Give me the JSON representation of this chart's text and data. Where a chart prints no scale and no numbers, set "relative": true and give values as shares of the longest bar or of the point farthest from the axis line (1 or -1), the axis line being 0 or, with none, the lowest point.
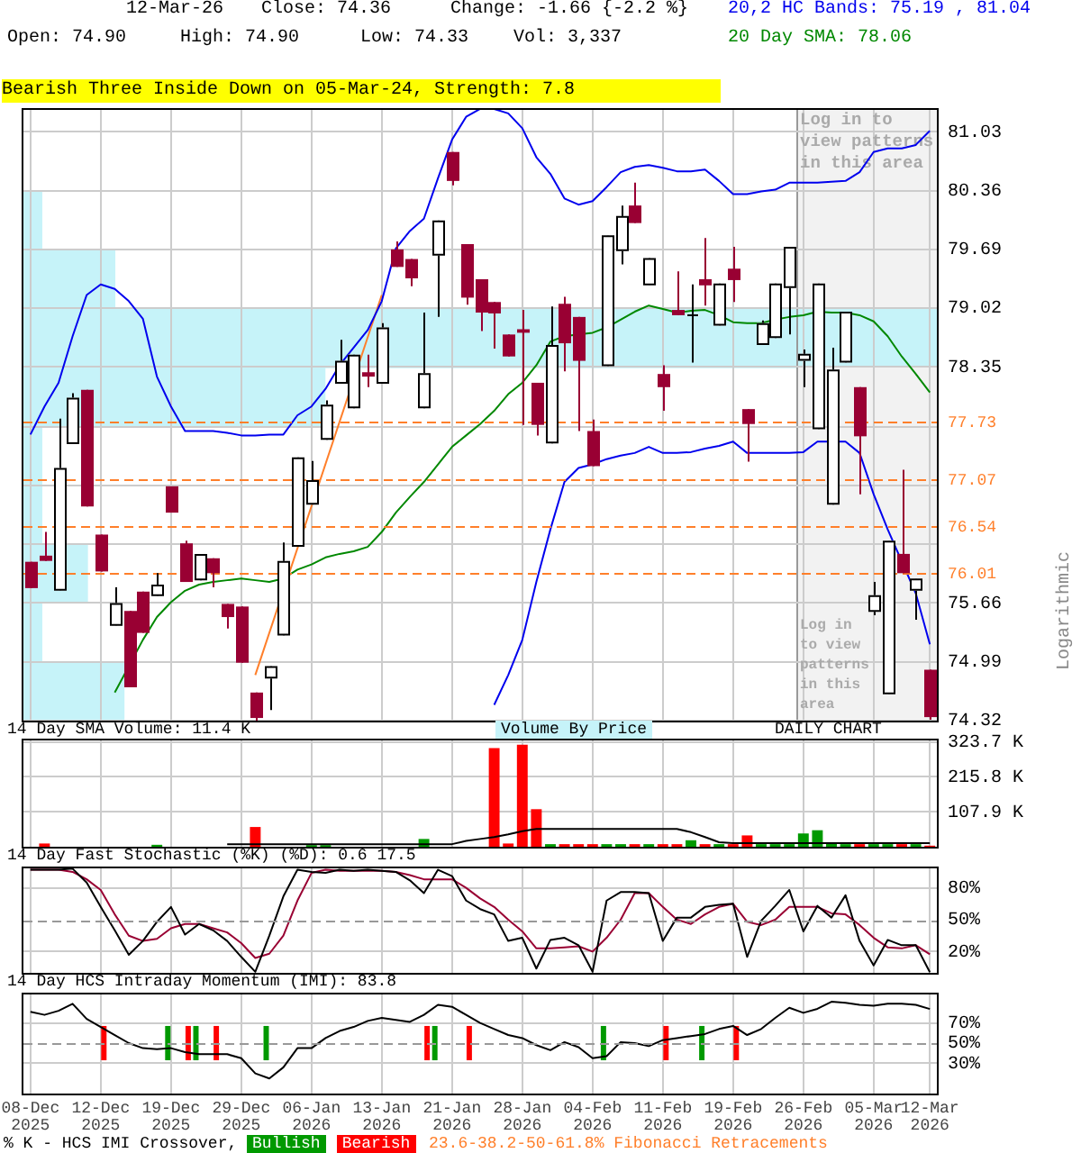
{
  "chart_data": [
    {
      "type": "candlestick",
      "categories": [
        "08-Dec 2025",
        null,
        null,
        null,
        null,
        "12-Dec 2025",
        null,
        null,
        null,
        null,
        "19-Dec 2025",
        null,
        null,
        null,
        null,
        "29-Dec 2025",
        null,
        null,
        null,
        null,
        "06-Jan 2026",
        null,
        null,
        null,
        null,
        "13-Jan 2026",
        null,
        null,
        null,
        null,
        "21-Jan 2026",
        null,
        null,
        null,
        null,
        "28-Jan 2026",
        null,
        null,
        null,
        null,
        "04-Feb 2026",
        null,
        null,
        null,
        null,
        "11-Feb 2026",
        null,
        null,
        null,
        null,
        "19-Feb 2026",
        null,
        null,
        null,
        null,
        "26-Feb 2026",
        null,
        null,
        null,
        null,
        "05-Mar 2026",
        null,
        null,
        null,
        "12-Mar 2026"
      ],
      "ohlc": [
        [
          76.13,
          76.13,
          75.83,
          75.83
        ],
        [
          76.2,
          76.47,
          76.14,
          76.14
        ],
        [
          75.8,
          77.76,
          75.8,
          77.2
        ],
        [
          77.47,
          78.05,
          77.47,
          78.0
        ],
        [
          78.09,
          78.09,
          76.76,
          76.76
        ],
        [
          76.44,
          76.44,
          76.02,
          76.02
        ],
        [
          75.4,
          75.84,
          75.4,
          75.66
        ],
        [
          75.57,
          75.57,
          74.7,
          74.7
        ],
        [
          75.79,
          75.79,
          75.32,
          75.32
        ],
        [
          75.74,
          76.0,
          75.74,
          75.87
        ],
        [
          76.99,
          76.99,
          76.69,
          76.69
        ],
        [
          76.34,
          76.37,
          75.9,
          75.9
        ],
        [
          75.92,
          76.22,
          75.92,
          76.22
        ],
        [
          76.17,
          76.17,
          75.84,
          76.0
        ],
        [
          75.65,
          75.65,
          75.37,
          75.5
        ],
        [
          75.62,
          75.62,
          74.98,
          74.98
        ],
        [
          74.64,
          74.64,
          74.32,
          74.35
        ],
        [
          74.8,
          74.94,
          74.44,
          74.94
        ],
        [
          75.29,
          76.35,
          75.29,
          76.14
        ],
        [
          76.3,
          77.32,
          76.3,
          77.32
        ],
        [
          76.78,
          77.28,
          76.78,
          77.06
        ],
        [
          77.52,
          77.97,
          77.52,
          77.92
        ],
        [
          78.16,
          78.66,
          78.16,
          78.42
        ],
        [
          77.88,
          78.49,
          77.88,
          78.49
        ],
        [
          78.29,
          78.49,
          78.12,
          78.24
        ],
        [
          78.16,
          78.85,
          78.16,
          78.8
        ],
        [
          79.69,
          79.78,
          79.49,
          79.49
        ],
        [
          79.58,
          79.58,
          79.27,
          79.36
        ],
        [
          77.88,
          78.97,
          77.88,
          78.28
        ],
        [
          79.62,
          80.02,
          78.92,
          80.02
        ],
        [
          80.8,
          80.8,
          80.42,
          80.47
        ],
        [
          79.75,
          79.75,
          79.06,
          79.14
        ],
        [
          79.35,
          79.35,
          78.76,
          78.97
        ],
        [
          79.09,
          79.09,
          78.56,
          78.96
        ],
        [
          78.72,
          78.72,
          78.47,
          78.47
        ],
        [
          78.78,
          79.0,
          77.69,
          78.74
        ],
        [
          78.17,
          78.17,
          77.57,
          77.69
        ],
        [
          77.48,
          79.04,
          77.48,
          78.6
        ],
        [
          79.07,
          79.15,
          78.3,
          78.62
        ],
        [
          78.92,
          78.92,
          77.62,
          78.42
        ],
        [
          77.62,
          77.75,
          77.22,
          77.22
        ],
        [
          78.36,
          79.85,
          78.36,
          79.85
        ],
        [
          79.67,
          80.19,
          79.52,
          80.07
        ],
        [
          80.19,
          80.45,
          79.99,
          79.99
        ],
        [
          79.28,
          79.59,
          79.28,
          79.59
        ],
        [
          78.27,
          78.37,
          77.85,
          78.12
        ],
        [
          79.0,
          79.44,
          78.94,
          78.94
        ],
        [
          78.94,
          79.29,
          78.4,
          78.95
        ],
        [
          79.35,
          79.82,
          79.05,
          79.28
        ],
        [
          78.82,
          79.3,
          78.82,
          79.3
        ],
        [
          79.47,
          79.72,
          79.09,
          79.34
        ],
        [
          77.87,
          77.87,
          77.27,
          77.7
        ],
        [
          78.6,
          78.88,
          78.6,
          78.85
        ],
        [
          78.68,
          79.3,
          78.68,
          79.3
        ],
        [
          79.25,
          79.72,
          78.72,
          79.72
        ],
        [
          78.42,
          78.55,
          78.12,
          78.5
        ],
        [
          77.64,
          79.3,
          77.64,
          79.3
        ],
        [
          76.78,
          78.57,
          76.78,
          78.32
        ],
        [
          78.4,
          78.98,
          78.4,
          78.98
        ],
        [
          78.12,
          78.12,
          76.9,
          77.56
        ],
        [
          75.56,
          75.9,
          75.52,
          75.75
        ],
        [
          74.62,
          76.37,
          74.62,
          76.37
        ],
        [
          76.22,
          77.18,
          76.0,
          76.0
        ],
        [
          75.8,
          75.94,
          75.47,
          75.94
        ],
        [
          74.9,
          74.9,
          74.33,
          74.36
        ]
      ],
      "colors": [
        "#990033",
        "#990033",
        "#ffffff",
        "#ffffff",
        "#990033",
        "#990033",
        "#ffffff",
        "#990033",
        "#990033",
        "#ffffff",
        "#990033",
        "#990033",
        "#ffffff",
        "#990033",
        "#990033",
        "#990033",
        "#990033",
        "#ffffff",
        "#ffffff",
        "#ffffff",
        "#ffffff",
        "#ffffff",
        "#ffffff",
        "#ffffff",
        "#990033",
        "#ffffff",
        "#990033",
        "#990033",
        "#ffffff",
        "#ffffff",
        "#990033",
        "#990033",
        "#990033",
        "#990033",
        "#990033",
        "#990033",
        "#990033",
        "#ffffff",
        "#990033",
        "#990033",
        "#990033",
        "#ffffff",
        "#ffffff",
        "#990033",
        "#ffffff",
        "#990033",
        "#990033",
        "#ffffff",
        "#990033",
        "#ffffff",
        "#990033",
        "#990033",
        "#ffffff",
        "#ffffff",
        "#ffffff",
        "#ffffff",
        "#ffffff",
        "#ffffff",
        "#ffffff",
        "#990033",
        "#ffffff",
        "#ffffff",
        "#990033",
        "#ffffff",
        "#990033"
      ],
      "series": [
        {
          "type": "line",
          "name": "20,2 HC Bands: 75.19 , 81.04",
          "color": "#0000ee",
          "values": [
            77.58,
            77.9,
            78.17,
            78.7,
            79.17,
            79.29,
            79.24,
            79.1,
            78.9,
            78.24,
            77.9,
            77.62,
            77.62,
            77.62,
            77.6,
            77.57,
            77.57,
            77.58,
            77.58,
            77.8,
            77.9,
            78.1,
            78.37,
            78.57,
            78.77,
            79.1,
            79.7,
            79.9,
            80.04,
            80.5,
            80.94,
            81.2,
            81.29,
            81.29,
            81.24,
            81.07,
            80.74,
            80.55,
            80.27,
            80.2,
            80.24,
            80.4,
            80.57,
            80.63,
            80.65,
            80.62,
            80.58,
            80.58,
            80.6,
            80.47,
            80.32,
            80.32,
            80.35,
            80.37,
            80.45,
            80.45,
            80.45,
            80.46,
            80.47,
            80.57,
            80.8,
            80.84,
            80.84,
            80.88,
            81.04
          ]
        },
        {
          "type": "line",
          "color": "#0000ee",
          "values": [
            null,
            null,
            null,
            null,
            null,
            null,
            null,
            null,
            null,
            null,
            null,
            null,
            null,
            null,
            null,
            null,
            null,
            null,
            null,
            null,
            null,
            null,
            null,
            null,
            null,
            null,
            null,
            null,
            null,
            null,
            null,
            null,
            null,
            74.5,
            74.84,
            75.24,
            75.9,
            76.5,
            77.04,
            77.2,
            77.24,
            77.3,
            77.34,
            77.37,
            77.44,
            77.37,
            77.37,
            77.38,
            77.42,
            77.45,
            77.5,
            77.37,
            77.37,
            77.37,
            77.37,
            77.38,
            77.5,
            77.5,
            77.5,
            77.37,
            76.9,
            76.5,
            null,
            75.77,
            75.19
          ]
        },
        {
          "type": "line",
          "name": "20 Day SMA: 78.06",
          "color": "#008800",
          "values": [
            null,
            null,
            null,
            null,
            null,
            null,
            74.64,
            null,
            75.24,
            75.5,
            75.67,
            75.8,
            75.87,
            75.9,
            75.92,
            75.94,
            75.92,
            75.9,
            75.94,
            76.04,
            76.1,
            76.18,
            76.22,
            76.25,
            76.3,
            76.47,
            76.69,
            76.87,
            77.04,
            77.24,
            77.44,
            77.57,
            77.7,
            77.85,
            78.04,
            78.17,
            78.37,
            78.64,
            78.7,
            78.72,
            78.74,
            78.8,
            78.89,
            78.98,
            79.05,
            79.01,
            78.97,
            78.99,
            79.0,
            78.94,
            78.86,
            78.85,
            78.85,
            78.89,
            78.92,
            78.94,
            78.98,
            78.97,
            78.97,
            78.94,
            78.87,
            78.7,
            78.47,
            78.27,
            78.06
          ]
        },
        {
          "type": "line",
          "color": "#ff7f2a",
          "values": [
            null,
            null,
            null,
            null,
            null,
            null,
            null,
            null,
            null,
            null,
            null,
            null,
            null,
            null,
            null,
            null,
            74.84,
            null,
            null,
            null,
            null,
            null,
            null,
            null,
            null,
            79.17,
            null,
            null,
            null,
            null,
            null,
            null,
            null,
            null,
            null,
            null,
            null,
            null,
            null,
            null,
            null,
            null,
            null,
            null,
            null,
            null,
            null,
            null,
            null,
            null,
            null,
            null,
            null,
            null,
            null,
            null,
            null,
            null,
            null,
            null,
            null,
            null,
            null,
            null,
            null
          ]
        }
      ],
      "ylim": [
        74.32,
        81.3
      ],
      "yticks": [
        74.32,
        74.99,
        75.66,
        {
          "value": 76.33,
          "label": null
        },
        {
          "value": 77.0,
          "label": null
        },
        {
          "value": 77.67,
          "label": null
        },
        78.35,
        79.02,
        79.69,
        80.36,
        81.03
      ],
      "grid": true,
      "tick_labels": "y",
      "ylabel": "Logarithmic",
      "ref_lines": [
        {
          "axis": "y",
          "value": 77.73,
          "label": "77.73",
          "color": "#ff7f2a",
          "line_style": "dashed"
        },
        {
          "axis": "y",
          "value": 77.07,
          "label": "77.07",
          "color": "#ff7f2a",
          "line_style": "dashed"
        },
        {
          "axis": "y",
          "value": 76.54,
          "label": "76.54",
          "color": "#ff7f2a",
          "line_style": "dashed"
        },
        {
          "axis": "y",
          "value": 76.01,
          "label": "76.01",
          "color": "#ff7f2a",
          "line_style": "dashed"
        }
      ],
      "bands": [
        {
          "axis": "x",
          "from": "26-Feb 2026",
          "to": "12-Mar 2026",
          "label": "Log in to view patterns in this area",
          "color": "#f2f2f2"
        }
      ],
      "annotations": [
        "12-Mar-26",
        "Close: 74.36",
        "Change: -1.66 {-2.2 %}",
        "Open: 74.90",
        "High: 74.90",
        "Low: 74.33",
        "Vol: 3,337",
        "Bearish Three Inside Down on 05-Mar-24, Strength: 7.8",
        "23.6-38.2-50-61.8% Fibonacci Retracements"
      ]
    },
    {
      "type": "bar",
      "orientation": "horizontal",
      "relative": true,
      "categories": [
        null,
        null,
        null,
        null,
        null,
        null,
        null,
        null,
        null
      ],
      "series": [
        {
          "name": "Volume By Price",
          "color": "#c6f3f9",
          "values": [
            0.02,
            0.1,
            1,
            0.33,
            0.02,
            0.02,
            0.07,
            0.02,
            0.11
          ]
        }
      ],
      "tick_labels": false,
      "legend": "bottom"
    },
    {
      "type": "bar",
      "categories": [
        "08-Dec 2025",
        null,
        null,
        null,
        null,
        "12-Dec 2025",
        null,
        null,
        null,
        null,
        "19-Dec 2025",
        null,
        null,
        null,
        null,
        "29-Dec 2025",
        null,
        null,
        null,
        null,
        "06-Jan 2026",
        null,
        null,
        null,
        null,
        "13-Jan 2026",
        null,
        null,
        null,
        null,
        "21-Jan 2026",
        null,
        null,
        null,
        null,
        "28-Jan 2026",
        null,
        null,
        null,
        null,
        "04-Feb 2026",
        null,
        null,
        null,
        null,
        "11-Feb 2026",
        null,
        null,
        null,
        null,
        "19-Feb 2026",
        null,
        null,
        null,
        null,
        "26-Feb 2026",
        null,
        null,
        null,
        null,
        "05-Mar 2026",
        null,
        null,
        null,
        "12-Mar 2026"
      ],
      "series": [
        {
          "values": [
            0,
            10,
            0,
            0,
            0,
            0,
            0,
            0,
            0,
            6,
            0,
            0,
            0,
            0,
            0,
            0,
            61,
            0,
            0,
            0,
            5,
            5,
            0,
            0,
            0,
            0,
            0,
            0,
            24,
            0,
            0,
            0,
            0,
            305,
            10,
            315,
            116,
            8,
            8,
            8,
            8,
            8,
            8,
            8,
            8,
            8,
            8,
            20,
            8,
            8,
            8,
            35,
            8,
            8,
            8,
            41,
            51,
            10,
            8,
            8,
            8,
            8,
            8,
            8,
            3.3
          ],
          "colors": [
            "#ff0000",
            "#ff0000",
            "#009900",
            "#009900",
            "#ff0000",
            "#ff0000",
            "#009900",
            "#ff0000",
            "#ff0000",
            "#009900",
            "#ff0000",
            "#ff0000",
            "#009900",
            "#ff0000",
            "#ff0000",
            "#ff0000",
            "#ff0000",
            "#009900",
            "#009900",
            "#009900",
            "#009900",
            "#009900",
            "#009900",
            "#009900",
            "#ff0000",
            "#009900",
            "#ff0000",
            "#ff0000",
            "#009900",
            "#009900",
            "#ff0000",
            "#ff0000",
            "#ff0000",
            "#ff0000",
            "#ff0000",
            "#ff0000",
            "#ff0000",
            "#009900",
            "#ff0000",
            "#ff0000",
            "#ff0000",
            "#009900",
            "#009900",
            "#ff0000",
            "#009900",
            "#ff0000",
            "#ff0000",
            "#009900",
            "#ff0000",
            "#009900",
            "#ff0000",
            "#ff0000",
            "#009900",
            "#009900",
            "#009900",
            "#009900",
            "#009900",
            "#009900",
            "#009900",
            "#ff0000",
            "#009900",
            "#009900",
            "#ff0000",
            "#009900",
            "#ff0000"
          ]
        },
        {
          "type": "line",
          "name": "14 Day SMA Volume: 11.4 K",
          "color": "#000000",
          "values": [
            null,
            null,
            null,
            null,
            null,
            null,
            null,
            null,
            null,
            null,
            null,
            null,
            null,
            null,
            8,
            8,
            8,
            8,
            8,
            8,
            8,
            8,
            8,
            8,
            8,
            8,
            8,
            8,
            8,
            8,
            8,
            18,
            24,
            30,
            38,
            48,
            55,
            55,
            55,
            55,
            55,
            55,
            55,
            55,
            55,
            55,
            55,
            45,
            30,
            14,
            11,
            11,
            11,
            11,
            11,
            11,
            11,
            11,
            11,
            11,
            11,
            11,
            11,
            11,
            11.4
          ]
        }
      ],
      "ylim": [
        0,
        334
      ],
      "yticks": [
        {
          "value": 107.9,
          "label": "107.9 K"
        },
        {
          "value": 215.8,
          "label": "215.8 K"
        },
        {
          "value": 323.7,
          "label": "323.7 K"
        }
      ],
      "grid": true,
      "tick_labels": "y",
      "annotations": [
        "DAILY CHART"
      ]
    },
    {
      "type": "line",
      "title": "14 Day Fast Stochastic (%K) (%D): 0.6  17.5",
      "categories": [
        "08-Dec 2025",
        null,
        null,
        null,
        null,
        "12-Dec 2025",
        null,
        null,
        null,
        null,
        "19-Dec 2025",
        null,
        null,
        null,
        null,
        "29-Dec 2025",
        null,
        null,
        null,
        null,
        "06-Jan 2026",
        null,
        null,
        null,
        null,
        "13-Jan 2026",
        null,
        null,
        null,
        null,
        "21-Jan 2026",
        null,
        null,
        null,
        null,
        "28-Jan 2026",
        null,
        null,
        null,
        null,
        "04-Feb 2026",
        null,
        null,
        null,
        null,
        "11-Feb 2026",
        null,
        null,
        null,
        null,
        "19-Feb 2026",
        null,
        null,
        null,
        null,
        "26-Feb 2026",
        null,
        null,
        null,
        null,
        "05-Mar 2026",
        null,
        null,
        null,
        "12-Mar 2026"
      ],
      "series": [
        {
          "color": "#000000",
          "values": [
            97,
            97,
            97,
            98,
            85,
            62,
            40,
            17,
            30,
            48,
            62,
            36,
            46,
            40,
            30,
            15,
            1,
            35,
            72,
            97,
            95,
            94,
            97,
            96,
            97,
            96,
            95,
            87,
            75,
            97,
            91,
            68,
            60,
            55,
            30,
            33,
            4,
            31,
            33,
            26,
            1,
            68,
            76,
            76,
            75,
            30,
            52,
            52,
            62,
            64,
            65,
            15,
            49,
            63,
            78,
            39,
            63,
            52,
            73,
            30,
            7,
            31,
            26,
            26,
            0.6
          ]
        },
        {
          "color": "#990033",
          "values": [
            97,
            97,
            97,
            95,
            88,
            78,
            55,
            35,
            30,
            32,
            42,
            46,
            46,
            42,
            38,
            28,
            14,
            18,
            35,
            68,
            94,
            97,
            96,
            96,
            96,
            96,
            95,
            92,
            88,
            88,
            88,
            80,
            70,
            62,
            50,
            39,
            23,
            23,
            24,
            25,
            20,
            33,
            50,
            75,
            75,
            62,
            50,
            46,
            55,
            62,
            65,
            48,
            45,
            50,
            62,
            62,
            62,
            56,
            55,
            45,
            33,
            24,
            23,
            26,
            17.5
          ]
        }
      ],
      "ylim": [
        0,
        100
      ],
      "yticks": [
        {
          "value": 20,
          "label": "20%"
        },
        {
          "value": 50,
          "label": "50%"
        },
        {
          "value": 80,
          "label": "80%"
        }
      ],
      "ref_lines": [
        {
          "axis": "y",
          "value": 50,
          "label": null,
          "color": "#999999",
          "line_style": "dashed"
        }
      ],
      "grid": true,
      "tick_labels": "y"
    },
    {
      "type": "line",
      "title": "14 Day HCS Intraday Momentum (IMI): 83.8",
      "categories": [
        "08-Dec 2025",
        null,
        null,
        null,
        null,
        "12-Dec 2025",
        null,
        null,
        null,
        null,
        "19-Dec 2025",
        null,
        null,
        null,
        null,
        "29-Dec 2025",
        null,
        null,
        null,
        null,
        "06-Jan 2026",
        null,
        null,
        null,
        null,
        "13-Jan 2026",
        null,
        null,
        null,
        null,
        "21-Jan 2026",
        null,
        null,
        null,
        null,
        "28-Jan 2026",
        null,
        null,
        null,
        null,
        "04-Feb 2026",
        null,
        null,
        null,
        null,
        "11-Feb 2026",
        null,
        null,
        null,
        null,
        "19-Feb 2026",
        null,
        null,
        null,
        null,
        "26-Feb 2026",
        null,
        null,
        null,
        null,
        "05-Mar 2026",
        null,
        null,
        null,
        "12-Mar 2026"
      ],
      "series": [
        {
          "type": "bar",
          "name": "Bullish",
          "color": "#009900",
          "base": [
            null,
            null,
            null,
            null,
            null,
            null,
            null,
            null,
            null,
            null,
            33,
            null,
            33,
            null,
            null,
            null,
            null,
            33,
            null,
            null,
            null,
            null,
            null,
            null,
            null,
            null,
            null,
            null,
            null,
            33,
            null,
            null,
            null,
            null,
            null,
            null,
            null,
            null,
            null,
            null,
            null,
            33,
            null,
            null,
            null,
            null,
            null,
            null,
            33,
            null,
            null,
            null,
            null,
            null,
            null,
            null,
            null,
            null,
            null,
            null,
            null,
            null,
            null,
            null,
            null
          ],
          "values": [
            null,
            null,
            null,
            null,
            null,
            null,
            null,
            null,
            null,
            null,
            34,
            null,
            34,
            null,
            null,
            null,
            null,
            34,
            null,
            null,
            null,
            null,
            null,
            null,
            null,
            null,
            null,
            null,
            null,
            34,
            null,
            null,
            null,
            null,
            null,
            null,
            null,
            null,
            null,
            null,
            null,
            34,
            null,
            null,
            null,
            null,
            null,
            null,
            34,
            null,
            null,
            null,
            null,
            null,
            null,
            null,
            null,
            null,
            null,
            null,
            null,
            null,
            null,
            null,
            null
          ]
        },
        {
          "type": "bar",
          "name": "Bearish",
          "color": "#ff0000",
          "base": [
            null,
            null,
            null,
            null,
            null,
            33,
            null,
            null,
            null,
            null,
            null,
            33,
            null,
            33,
            null,
            null,
            null,
            null,
            null,
            null,
            null,
            null,
            null,
            null,
            null,
            null,
            null,
            null,
            33,
            null,
            null,
            33,
            null,
            null,
            null,
            null,
            null,
            null,
            null,
            null,
            null,
            null,
            null,
            null,
            null,
            33,
            null,
            null,
            null,
            null,
            33,
            null,
            null,
            null,
            null,
            null,
            null,
            null,
            null,
            null,
            null,
            null,
            null,
            null,
            null
          ],
          "values": [
            null,
            null,
            null,
            null,
            null,
            34,
            null,
            null,
            null,
            null,
            null,
            34,
            null,
            34,
            null,
            null,
            null,
            null,
            null,
            null,
            null,
            null,
            null,
            null,
            null,
            null,
            null,
            null,
            34,
            null,
            null,
            34,
            null,
            null,
            null,
            null,
            null,
            null,
            null,
            null,
            null,
            null,
            null,
            null,
            null,
            34,
            null,
            null,
            null,
            null,
            34,
            null,
            null,
            null,
            null,
            null,
            null,
            null,
            null,
            null,
            null,
            null,
            null,
            null,
            null
          ]
        },
        {
          "type": "line",
          "color": "#000000",
          "values": [
            81,
            78,
            82,
            89,
            74,
            66,
            58,
            50,
            45,
            44,
            45,
            41,
            39,
            39,
            39,
            35,
            20,
            15,
            26,
            45,
            45,
            55,
            62,
            66,
            72,
            75,
            73,
            71,
            78,
            88,
            86,
            78,
            70,
            64,
            58,
            55,
            48,
            43,
            51,
            46,
            35,
            37,
            51,
            50,
            47,
            53,
            55,
            57,
            59,
            64,
            67,
            58,
            64,
            75,
            85,
            80,
            84,
            91,
            90,
            88,
            87,
            89,
            89,
            88,
            83.8
          ]
        }
      ],
      "ylim": [
        0,
        100
      ],
      "yticks": [
        {
          "value": 30,
          "label": "30%"
        },
        {
          "value": 50,
          "label": "50%"
        },
        {
          "value": 70,
          "label": "70%"
        }
      ],
      "ref_lines": [
        {
          "axis": "y",
          "value": 50,
          "label": null,
          "color": "#999999",
          "line_style": "dashed"
        }
      ],
      "grid": true,
      "legend": "bottom",
      "legend_title": "% K - HCS IMI Crossover,"
    }
  ]
}
